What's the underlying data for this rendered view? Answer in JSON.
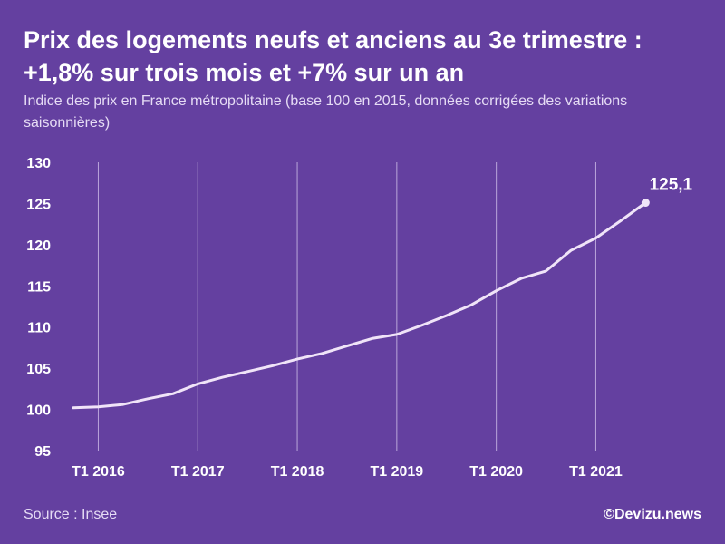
{
  "title": "Prix des logements neufs et anciens au 3e trimestre : +1,8% sur trois mois et +7% sur un an",
  "subtitle": "Indice des prix en France métropolitaine (base 100 en 2015, données corrigées des variations saisonnières)",
  "source": "Source : Insee",
  "credit": "©Devizu.news",
  "colors": {
    "background": "#6440a0",
    "line": "#f0e4f8",
    "grid": "#c9b8e6",
    "text": "#ffffff"
  },
  "chart_data": {
    "type": "line",
    "title": "",
    "xlabel": "",
    "ylabel": "",
    "ylim": [
      95,
      130
    ],
    "yticks": [
      95,
      100,
      105,
      110,
      115,
      120,
      125,
      130
    ],
    "xticks": [
      "T1 2016",
      "T1 2017",
      "T1 2018",
      "T1 2019",
      "T1 2020",
      "T1 2021"
    ],
    "grid": "vertical",
    "x": [
      "T4 2015",
      "T1 2016",
      "T2 2016",
      "T3 2016",
      "T4 2016",
      "T1 2017",
      "T2 2017",
      "T3 2017",
      "T4 2017",
      "T1 2018",
      "T2 2018",
      "T3 2018",
      "T4 2018",
      "T1 2019",
      "T2 2019",
      "T3 2019",
      "T4 2019",
      "T1 2020",
      "T2 2020",
      "T3 2020",
      "T4 2020",
      "T1 2021",
      "T2 2021",
      "T3 2021"
    ],
    "series": [
      {
        "values": [
          100.2,
          100.3,
          100.6,
          101.3,
          101.9,
          103.1,
          103.9,
          104.6,
          105.3,
          106.1,
          106.8,
          107.7,
          108.6,
          109.1,
          110.2,
          111.4,
          112.7,
          114.4,
          115.9,
          116.8,
          119.3,
          120.8,
          122.9,
          125.1
        ]
      }
    ],
    "last_value_label": "125,1"
  }
}
